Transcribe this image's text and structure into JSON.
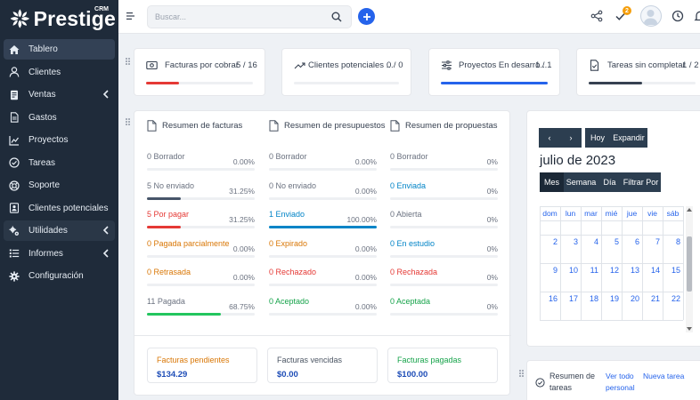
{
  "brand": {
    "name": "Prestige",
    "tag": "CRM"
  },
  "sidebar": {
    "items": [
      {
        "label": "Tablero",
        "icon": "home-icon"
      },
      {
        "label": "Clientes",
        "icon": "user-icon"
      },
      {
        "label": "Ventas",
        "icon": "receipt-icon",
        "has_submenu": true
      },
      {
        "label": "Gastos",
        "icon": "file-icon"
      },
      {
        "label": "Proyectos",
        "icon": "chart-icon"
      },
      {
        "label": "Tareas",
        "icon": "check-circle-icon"
      },
      {
        "label": "Soporte",
        "icon": "life-ring-icon"
      },
      {
        "label": "Clientes potenciales",
        "icon": "id-card-icon"
      },
      {
        "label": "Utilidades",
        "icon": "cogs-icon",
        "has_submenu": true
      },
      {
        "label": "Informes",
        "icon": "list-icon",
        "has_submenu": true
      },
      {
        "label": "Configuración",
        "icon": "gear-icon"
      }
    ]
  },
  "topbar": {
    "search_placeholder": "Buscar...",
    "notifications_count": "2"
  },
  "stats": [
    {
      "label": "Facturas por cobrar",
      "count": "5 / 16",
      "progress": 0.31,
      "color": "#e53935",
      "icon": "invoice-icon"
    },
    {
      "label": "Clientes potenciales ...",
      "count": "0 / 0",
      "progress": 0,
      "color": "#9ca3af",
      "icon": "trend-icon"
    },
    {
      "label": "Proyectos En desarro...",
      "count": "1 / 1",
      "progress": 1,
      "color": "#2563eb",
      "icon": "sliders-icon"
    },
    {
      "label": "Tareas sin completar",
      "count": "1 / 2",
      "progress": 0.5,
      "color": "#374151",
      "icon": "task-icon"
    }
  ],
  "summary": {
    "columns": [
      {
        "title": "Resumen de facturas",
        "rows": [
          {
            "label": "0 Borrador",
            "pct": "0.00%",
            "value": 0,
            "color": "#6b7280"
          },
          {
            "label": "5 No enviado",
            "pct": "31.25%",
            "value": 0.3125,
            "color": "#6b7280",
            "fill": "#475569"
          },
          {
            "label": "5 Por pagar",
            "pct": "31.25%",
            "value": 0.3125,
            "color": "#e53935",
            "fill": "#e53935"
          },
          {
            "label": "0 Pagada parcialmente",
            "pct": "0.00%",
            "value": 0,
            "color": "#d97706"
          },
          {
            "label": "0 Retrasada",
            "pct": "0.00%",
            "value": 0,
            "color": "#d97706"
          },
          {
            "label": "11 Pagada",
            "pct": "68.75%",
            "value": 0.6875,
            "color": "#6b7280",
            "fill": "#22c55e"
          }
        ]
      },
      {
        "title": "Resumen de presupuestos",
        "rows": [
          {
            "label": "0 Borrador",
            "pct": "0.00%",
            "value": 0,
            "color": "#6b7280"
          },
          {
            "label": "0 No enviado",
            "pct": "0.00%",
            "value": 0,
            "color": "#6b7280"
          },
          {
            "label": "1 Enviado",
            "pct": "100.00%",
            "value": 1,
            "color": "#0284c7",
            "fill": "#0284c7"
          },
          {
            "label": "0 Expirado",
            "pct": "0.00%",
            "value": 0,
            "color": "#d97706"
          },
          {
            "label": "0 Rechazado",
            "pct": "0.00%",
            "value": 0,
            "color": "#e53935"
          },
          {
            "label": "0 Aceptado",
            "pct": "0.00%",
            "value": 0,
            "color": "#16a34a"
          }
        ]
      },
      {
        "title": "Resumen de propuestas",
        "rows": [
          {
            "label": "0 Borrador",
            "pct": "0%",
            "value": 0,
            "color": "#6b7280"
          },
          {
            "label": "0 Enviada",
            "pct": "0%",
            "value": 0,
            "color": "#0284c7"
          },
          {
            "label": "0 Abierta",
            "pct": "0%",
            "value": 0,
            "color": "#6b7280"
          },
          {
            "label": "0 En estudio",
            "pct": "0%",
            "value": 0,
            "color": "#0284c7"
          },
          {
            "label": "0 Rechazada",
            "pct": "0%",
            "value": 0,
            "color": "#e53935"
          },
          {
            "label": "0 Aceptada",
            "pct": "0%",
            "value": 0,
            "color": "#16a34a"
          }
        ]
      }
    ],
    "totals": [
      {
        "label": "Facturas pendientes",
        "value": "$134.29",
        "color": "#d97706"
      },
      {
        "label": "Facturas vencidas",
        "value": "$0.00",
        "color": "#4b5563"
      },
      {
        "label": "Facturas pagadas",
        "value": "$100.00",
        "color": "#16a34a"
      }
    ]
  },
  "calendar": {
    "prev": "‹",
    "next": "›",
    "today": "Hoy",
    "expand": "Expandir",
    "title": "julio de 2023",
    "views": [
      "Mes",
      "Semana",
      "Día",
      "Filtrar Por"
    ],
    "weekdays": [
      "dom",
      "lun",
      "mar",
      "mié",
      "jue",
      "vie",
      "sáb"
    ],
    "weeks": [
      [
        "",
        "",
        "",
        "",
        "",
        "",
        ""
      ],
      [
        "2",
        "3",
        "4",
        "5",
        "6",
        "7",
        "8"
      ],
      [
        "9",
        "10",
        "11",
        "12",
        "13",
        "14",
        "15"
      ],
      [
        "16",
        "17",
        "18",
        "19",
        "20",
        "21",
        "22"
      ]
    ]
  },
  "tasks": {
    "title_line1": "Resumen de",
    "title_line2": "tareas",
    "view_all": "Ver todo",
    "new_task_line1": "Nueva tarea",
    "new_task_line2": "personal"
  }
}
